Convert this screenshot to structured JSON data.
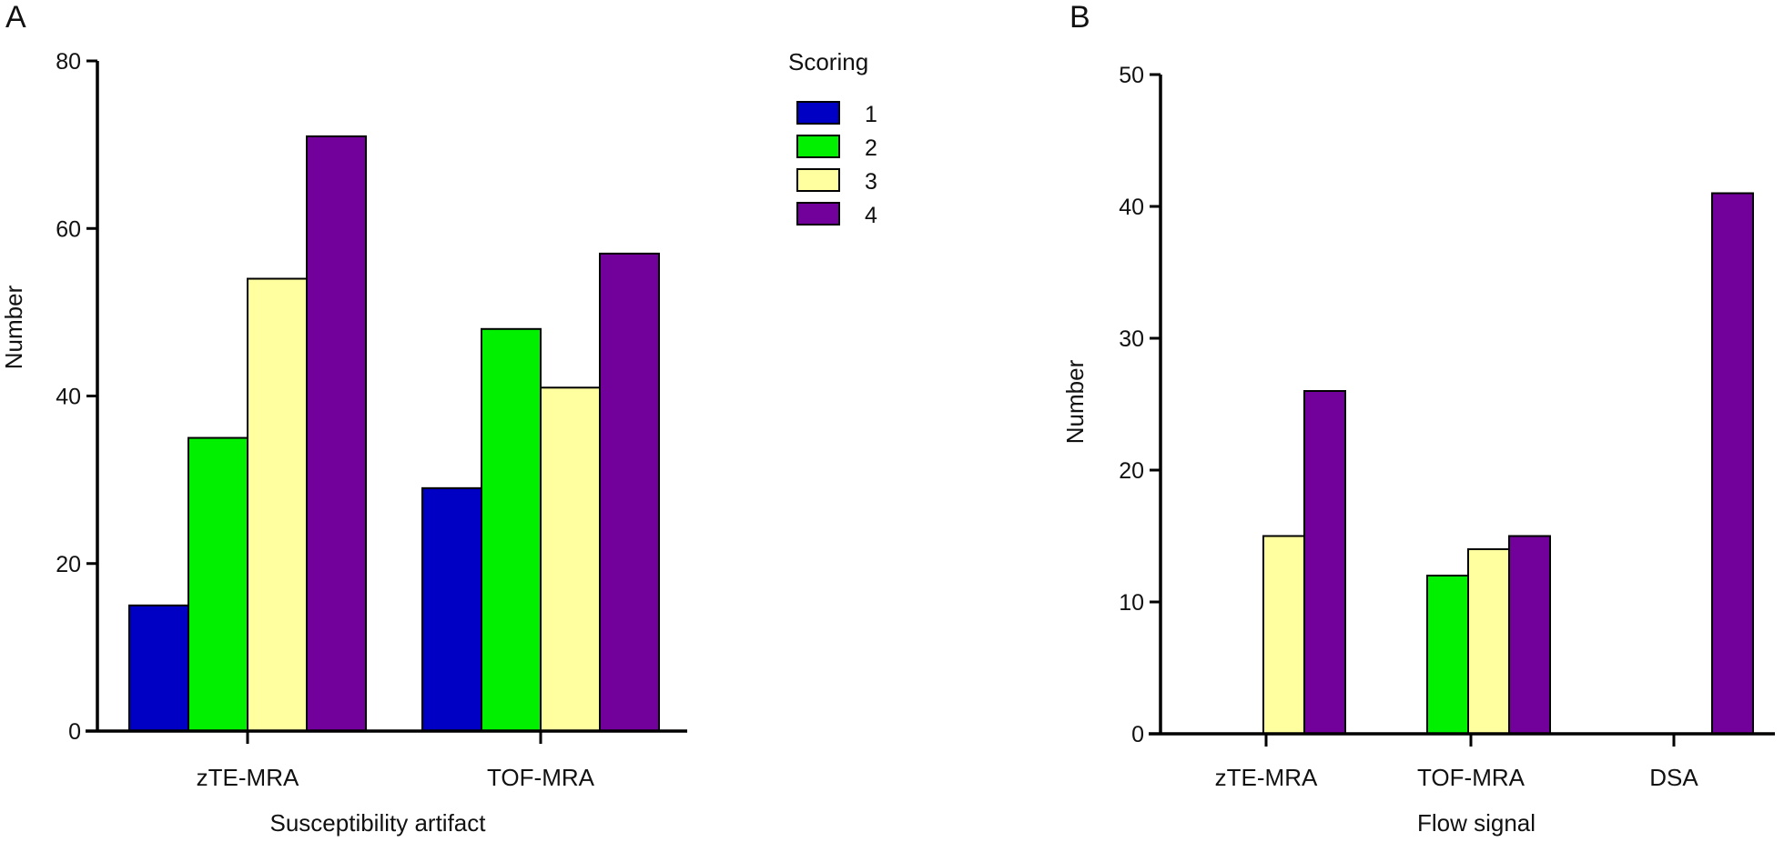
{
  "chart_data": [
    {
      "type": "bar",
      "panel_label": "A",
      "xlabel": "Susceptibility artifact",
      "ylabel": "Number",
      "ylim": [
        0,
        80
      ],
      "yticks": [
        "0",
        "20",
        "40",
        "60",
        "80"
      ],
      "categories": [
        "zTE-MRA",
        "TOF-MRA"
      ],
      "series": [
        {
          "name": "1",
          "color": "#0000c4",
          "values": [
            15,
            29
          ]
        },
        {
          "name": "2",
          "color": "#00f000",
          "values": [
            35,
            48
          ]
        },
        {
          "name": "3",
          "color": "#ffffa0",
          "values": [
            54,
            41
          ]
        },
        {
          "name": "4",
          "color": "#72009a",
          "values": [
            71,
            57
          ]
        }
      ],
      "legend": {
        "title": "Scoring",
        "placement": "top-right",
        "items": [
          "1",
          "2",
          "3",
          "4"
        ]
      },
      "grid": false
    },
    {
      "type": "bar",
      "panel_label": "B",
      "xlabel": "Flow signal",
      "ylabel": "Number",
      "ylim": [
        0,
        50
      ],
      "yticks": [
        "0",
        "10",
        "20",
        "30",
        "40",
        "50"
      ],
      "categories": [
        "zTE-MRA",
        "TOF-MRA",
        "DSA"
      ],
      "series": [
        {
          "name": "1",
          "color": "#0000c4",
          "values": [
            0,
            0,
            0
          ]
        },
        {
          "name": "2",
          "color": "#00f000",
          "values": [
            0,
            12,
            0
          ]
        },
        {
          "name": "3",
          "color": "#ffffa0",
          "values": [
            15,
            14,
            0
          ]
        },
        {
          "name": "4",
          "color": "#72009a",
          "values": [
            26,
            15,
            41
          ]
        }
      ],
      "grid": false
    }
  ]
}
